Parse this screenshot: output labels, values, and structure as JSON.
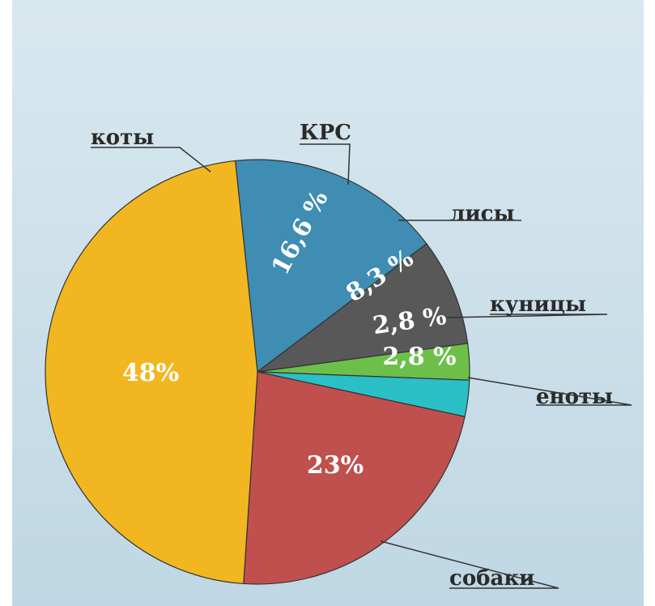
{
  "chart_data": {
    "type": "pie",
    "categories": [
      "КРС",
      "лисы",
      "куницы",
      "еноты",
      "собаки",
      "коты"
    ],
    "values": [
      16.6,
      8.3,
      2.8,
      2.8,
      23,
      48
    ],
    "value_labels": [
      "16,6 %",
      "8,3 %",
      "2,8 %",
      "2,8 %",
      "23%",
      "48%"
    ],
    "colors": [
      "#3f8db3",
      "#585858",
      "#6cc04a",
      "#2bbfc6",
      "#c0504d",
      "#f2b720"
    ]
  }
}
